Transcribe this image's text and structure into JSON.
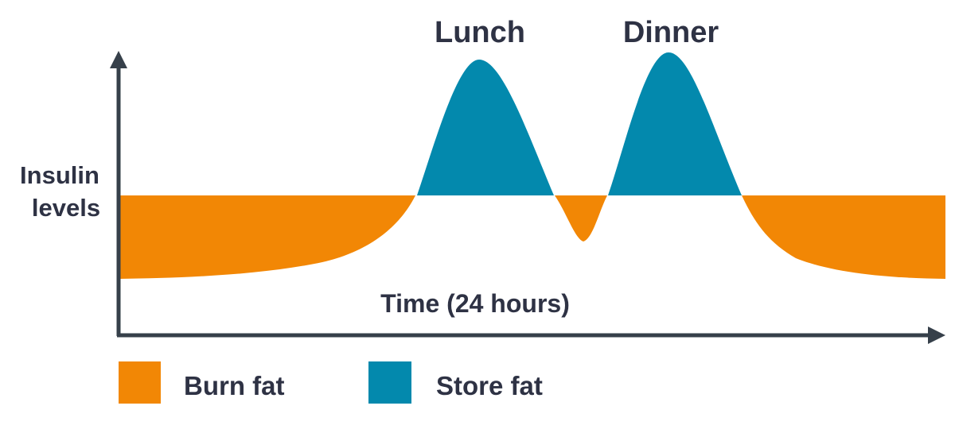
{
  "labels": {
    "y_axis": [
      "Insulin",
      "levels"
    ],
    "x_axis": "Time (24 hours)",
    "peaks": [
      "Lunch",
      "Dinner"
    ]
  },
  "legend": [
    {
      "label": "Burn fat",
      "color": "#f28705"
    },
    {
      "label": "Store fat",
      "color": "#0389ad"
    }
  ],
  "colors": {
    "burn": "#f28705",
    "store": "#0389ad",
    "axis": "#36404a",
    "text": "#2e3244"
  }
}
